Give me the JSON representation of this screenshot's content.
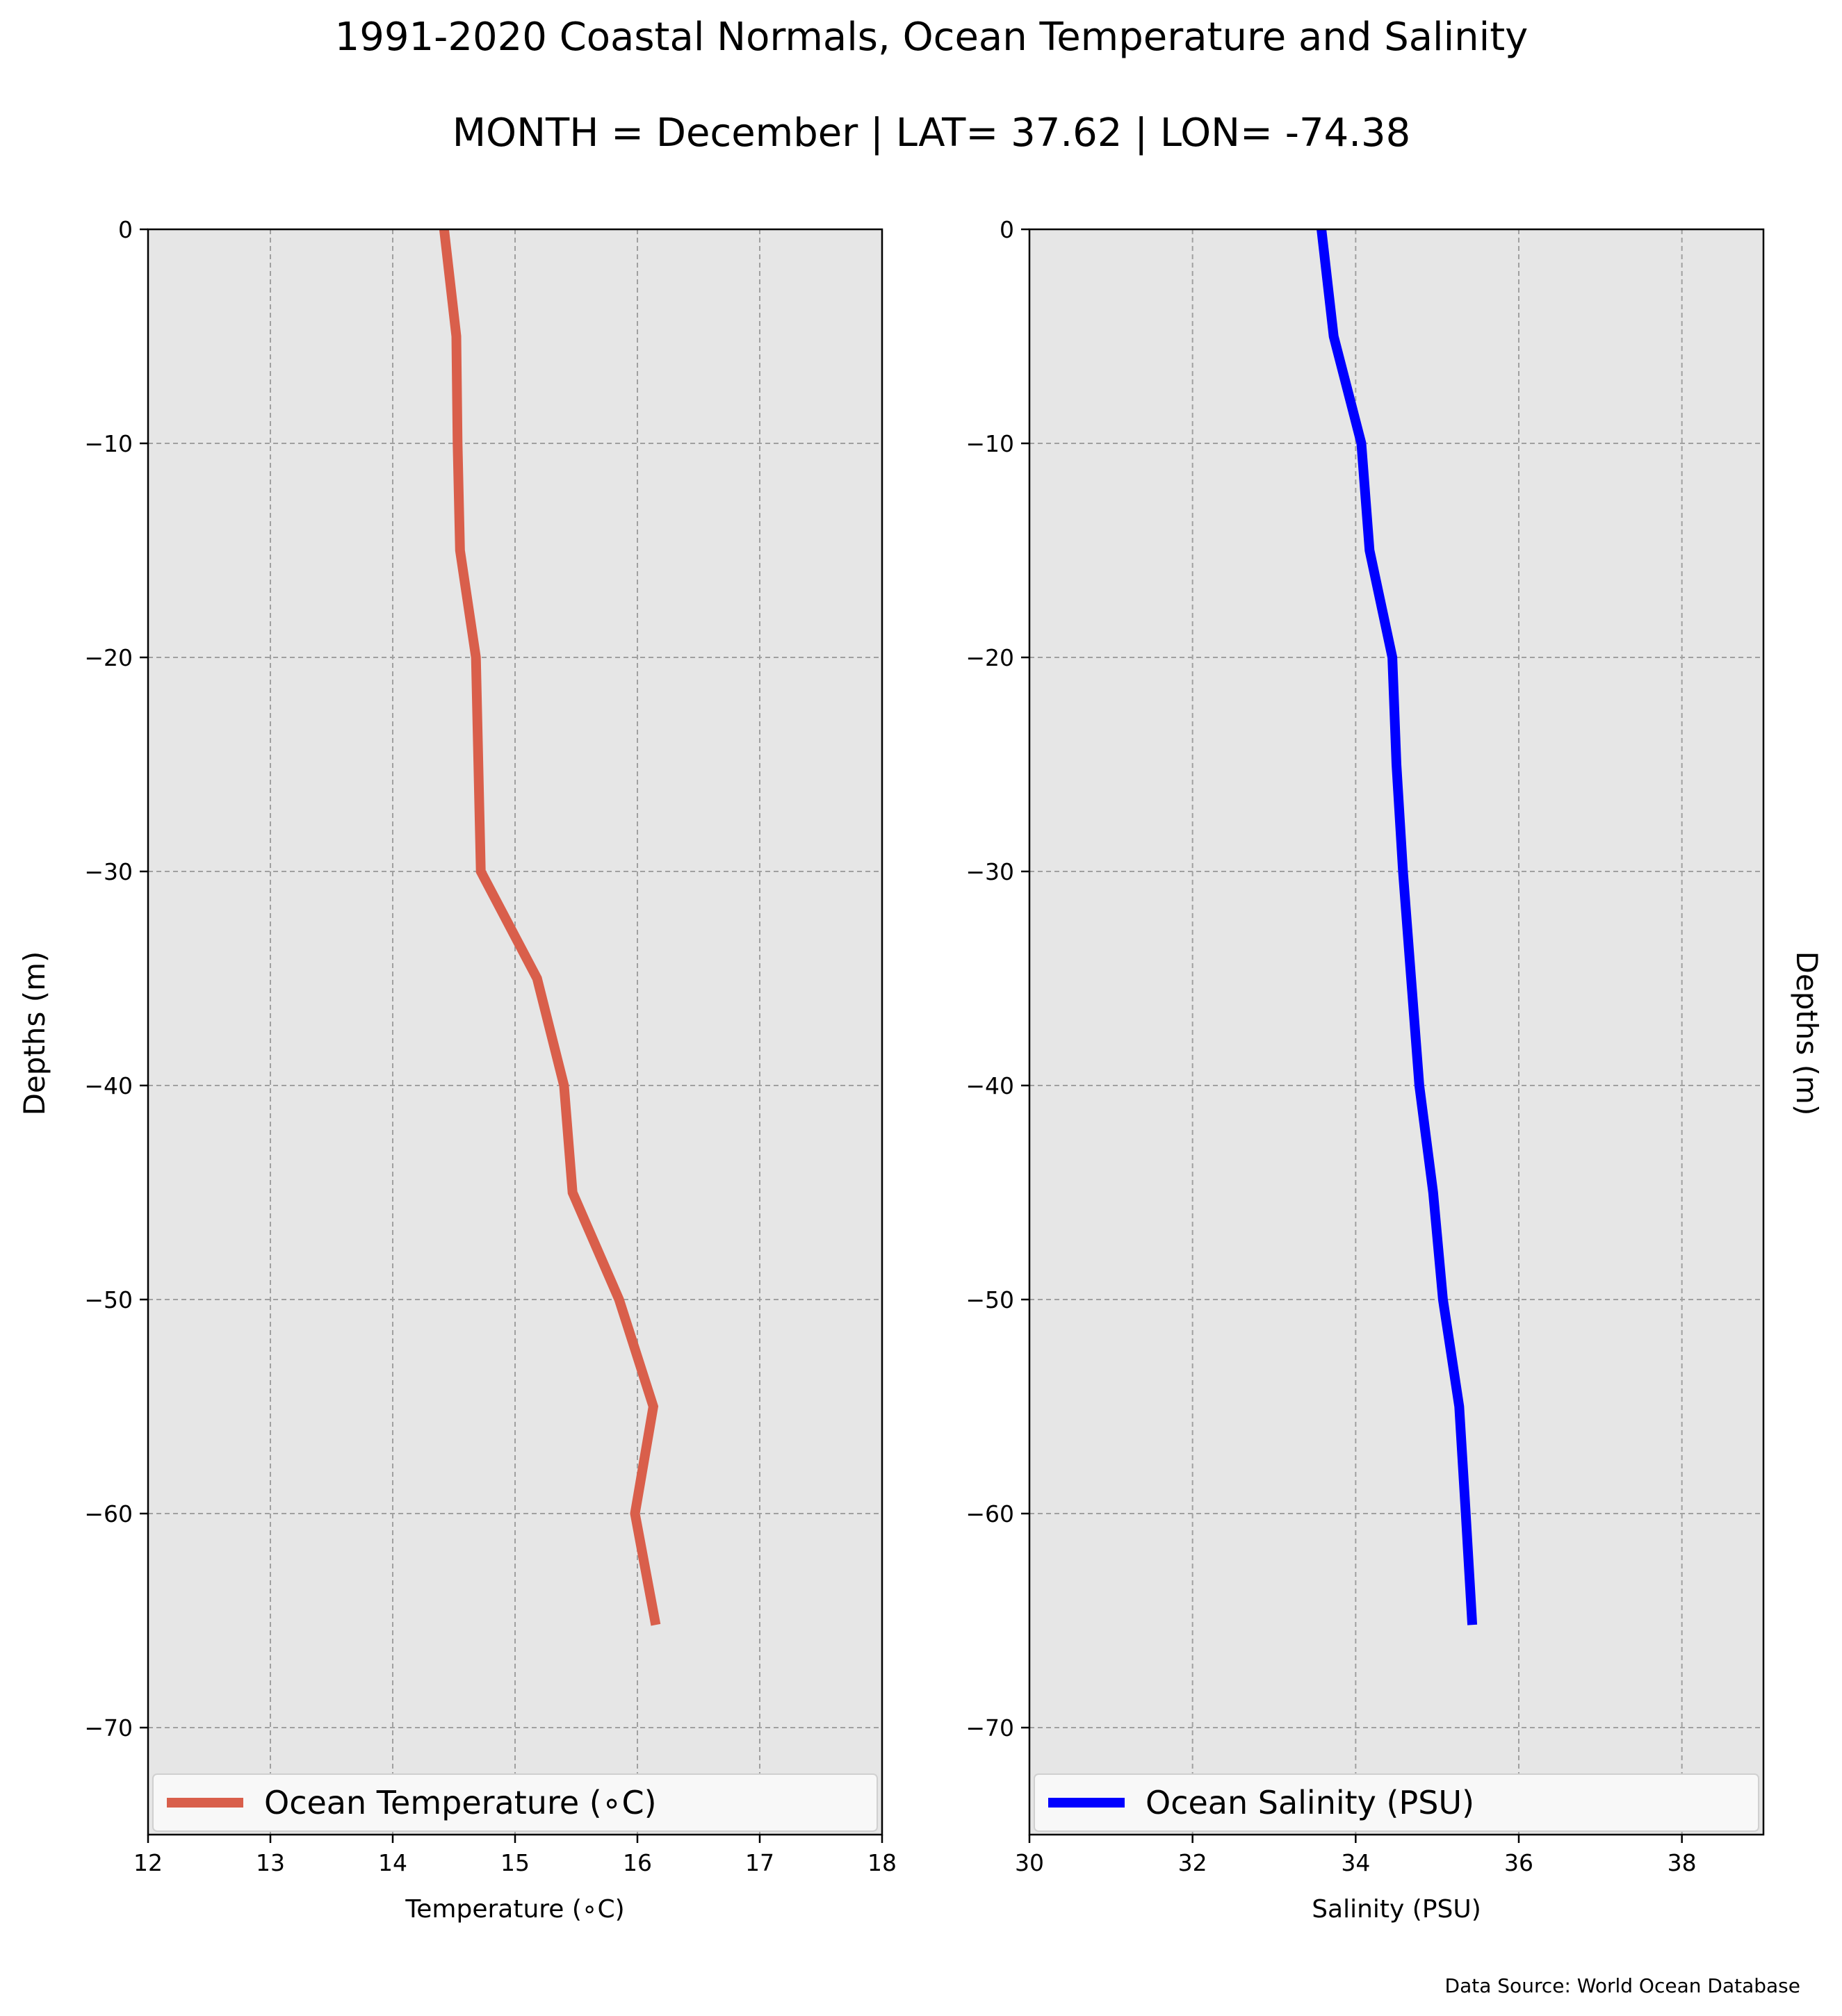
{
  "title": "1991-2020 Coastal Normals, Ocean Temperature and Salinity",
  "subtitle": "MONTH = December | LAT= 37.62 | LON= -74.38",
  "source_note": "Data Source: World Ocean Database",
  "colors": {
    "temperature": "#d95f4b",
    "salinity": "#0000ff",
    "plot_bg": "#e6e6e6",
    "grid": "#a0a0a0"
  },
  "chart_data": [
    {
      "type": "line",
      "xlabel": "Temperature ($^\\circ$C)",
      "xlabel_display": "Temperature (∘C)",
      "ylabel": "Depths (m)",
      "xlim": [
        12,
        18
      ],
      "ylim": [
        -75,
        0
      ],
      "xticks": [
        12,
        13,
        14,
        15,
        16,
        17,
        18
      ],
      "yticks": [
        0,
        -10,
        -20,
        -30,
        -40,
        -50,
        -60,
        -70
      ],
      "ytick_labels": [
        "0",
        "−10",
        "−20",
        "−30",
        "−40",
        "−50",
        "−60",
        "−70"
      ],
      "grid": true,
      "legend_position": "bottom",
      "series": [
        {
          "name": "Ocean Temperature (∘C)",
          "x": [
            14.42,
            14.52,
            14.53,
            14.55,
            14.68,
            14.7,
            14.72,
            15.18,
            15.4,
            15.47,
            15.85,
            16.13,
            15.98,
            16.15
          ],
          "y": [
            0,
            -5,
            -10,
            -15,
            -20,
            -25,
            -30,
            -35,
            -40,
            -45,
            -50,
            -55,
            -60,
            -65.2
          ]
        }
      ]
    },
    {
      "type": "line",
      "xlabel": "Salinity (PSU)",
      "ylabel": "Depths (m)",
      "xlim": [
        30,
        39
      ],
      "ylim": [
        -75,
        0
      ],
      "xticks": [
        30,
        32,
        34,
        36,
        38
      ],
      "yticks": [
        0,
        -10,
        -20,
        -30,
        -40,
        -50,
        -60,
        -70
      ],
      "ytick_labels": [
        "0",
        "−10",
        "−20",
        "−30",
        "−40",
        "−50",
        "−60",
        "−70"
      ],
      "grid": true,
      "legend_position": "bottom",
      "series": [
        {
          "name": "Ocean Salinity (PSU)",
          "x": [
            33.58,
            33.73,
            34.07,
            34.17,
            34.45,
            34.5,
            34.58,
            34.68,
            34.78,
            34.95,
            35.07,
            35.27,
            35.35,
            35.43
          ],
          "y": [
            0,
            -5,
            -10,
            -15,
            -20,
            -25,
            -30,
            -35,
            -40,
            -45,
            -50,
            -55,
            -60,
            -65.2
          ]
        }
      ]
    }
  ]
}
